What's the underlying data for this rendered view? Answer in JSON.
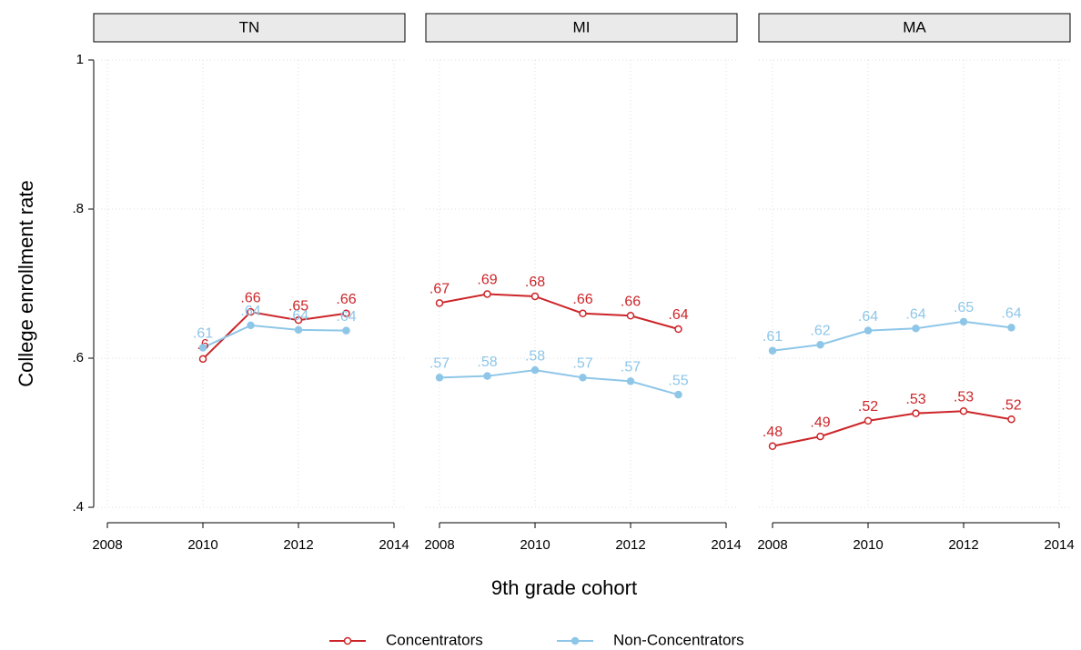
{
  "chart_data": {
    "type": "line",
    "ylabel": "College enrollment rate",
    "xlabel": "9th grade cohort",
    "ylim": [
      0.4,
      1
    ],
    "yticks": [
      {
        "value": 0.4,
        "label": ".4"
      },
      {
        "value": 0.6,
        "label": ".6"
      },
      {
        "value": 0.8,
        "label": ".8"
      },
      1
    ],
    "xlim": [
      2008,
      2014
    ],
    "xticks": [
      2008,
      2010,
      2012,
      2014
    ],
    "grid": true,
    "legend": "bottom",
    "series": [
      {
        "name": "Concentrators",
        "color": "#cc2529",
        "marker": "hollow"
      },
      {
        "name": "Non-Concentrators",
        "color": "#8ec6e8",
        "marker": "filled"
      }
    ],
    "facets": [
      {
        "title": "TN",
        "x": [
          2010,
          2011,
          2012,
          2013
        ],
        "values": [
          [
            0.599,
            0.662,
            0.651,
            0.66
          ],
          [
            0.614,
            0.644,
            0.638,
            0.637
          ]
        ],
        "value_labels": [
          [
            ".6",
            ".66",
            ".65",
            ".66"
          ],
          [
            ".61",
            ".64",
            ".64",
            ".64"
          ]
        ]
      },
      {
        "title": "MI",
        "x": [
          2008,
          2009,
          2010,
          2011,
          2012,
          2013
        ],
        "values": [
          [
            0.674,
            0.686,
            0.683,
            0.66,
            0.657,
            0.639
          ],
          [
            0.574,
            0.576,
            0.584,
            0.574,
            0.569,
            0.551
          ]
        ],
        "value_labels": [
          [
            ".67",
            ".69",
            ".68",
            ".66",
            ".66",
            ".64"
          ],
          [
            ".57",
            ".58",
            ".58",
            ".57",
            ".57",
            ".55"
          ]
        ]
      },
      {
        "title": "MA",
        "x": [
          2008,
          2009,
          2010,
          2011,
          2012,
          2013
        ],
        "values": [
          [
            0.482,
            0.495,
            0.516,
            0.526,
            0.529,
            0.518
          ],
          [
            0.61,
            0.618,
            0.637,
            0.64,
            0.649,
            0.641
          ]
        ],
        "value_labels": [
          [
            ".48",
            ".49",
            ".52",
            ".53",
            ".53",
            ".52"
          ],
          [
            ".61",
            ".62",
            ".64",
            ".64",
            ".65",
            ".64"
          ]
        ]
      }
    ]
  }
}
